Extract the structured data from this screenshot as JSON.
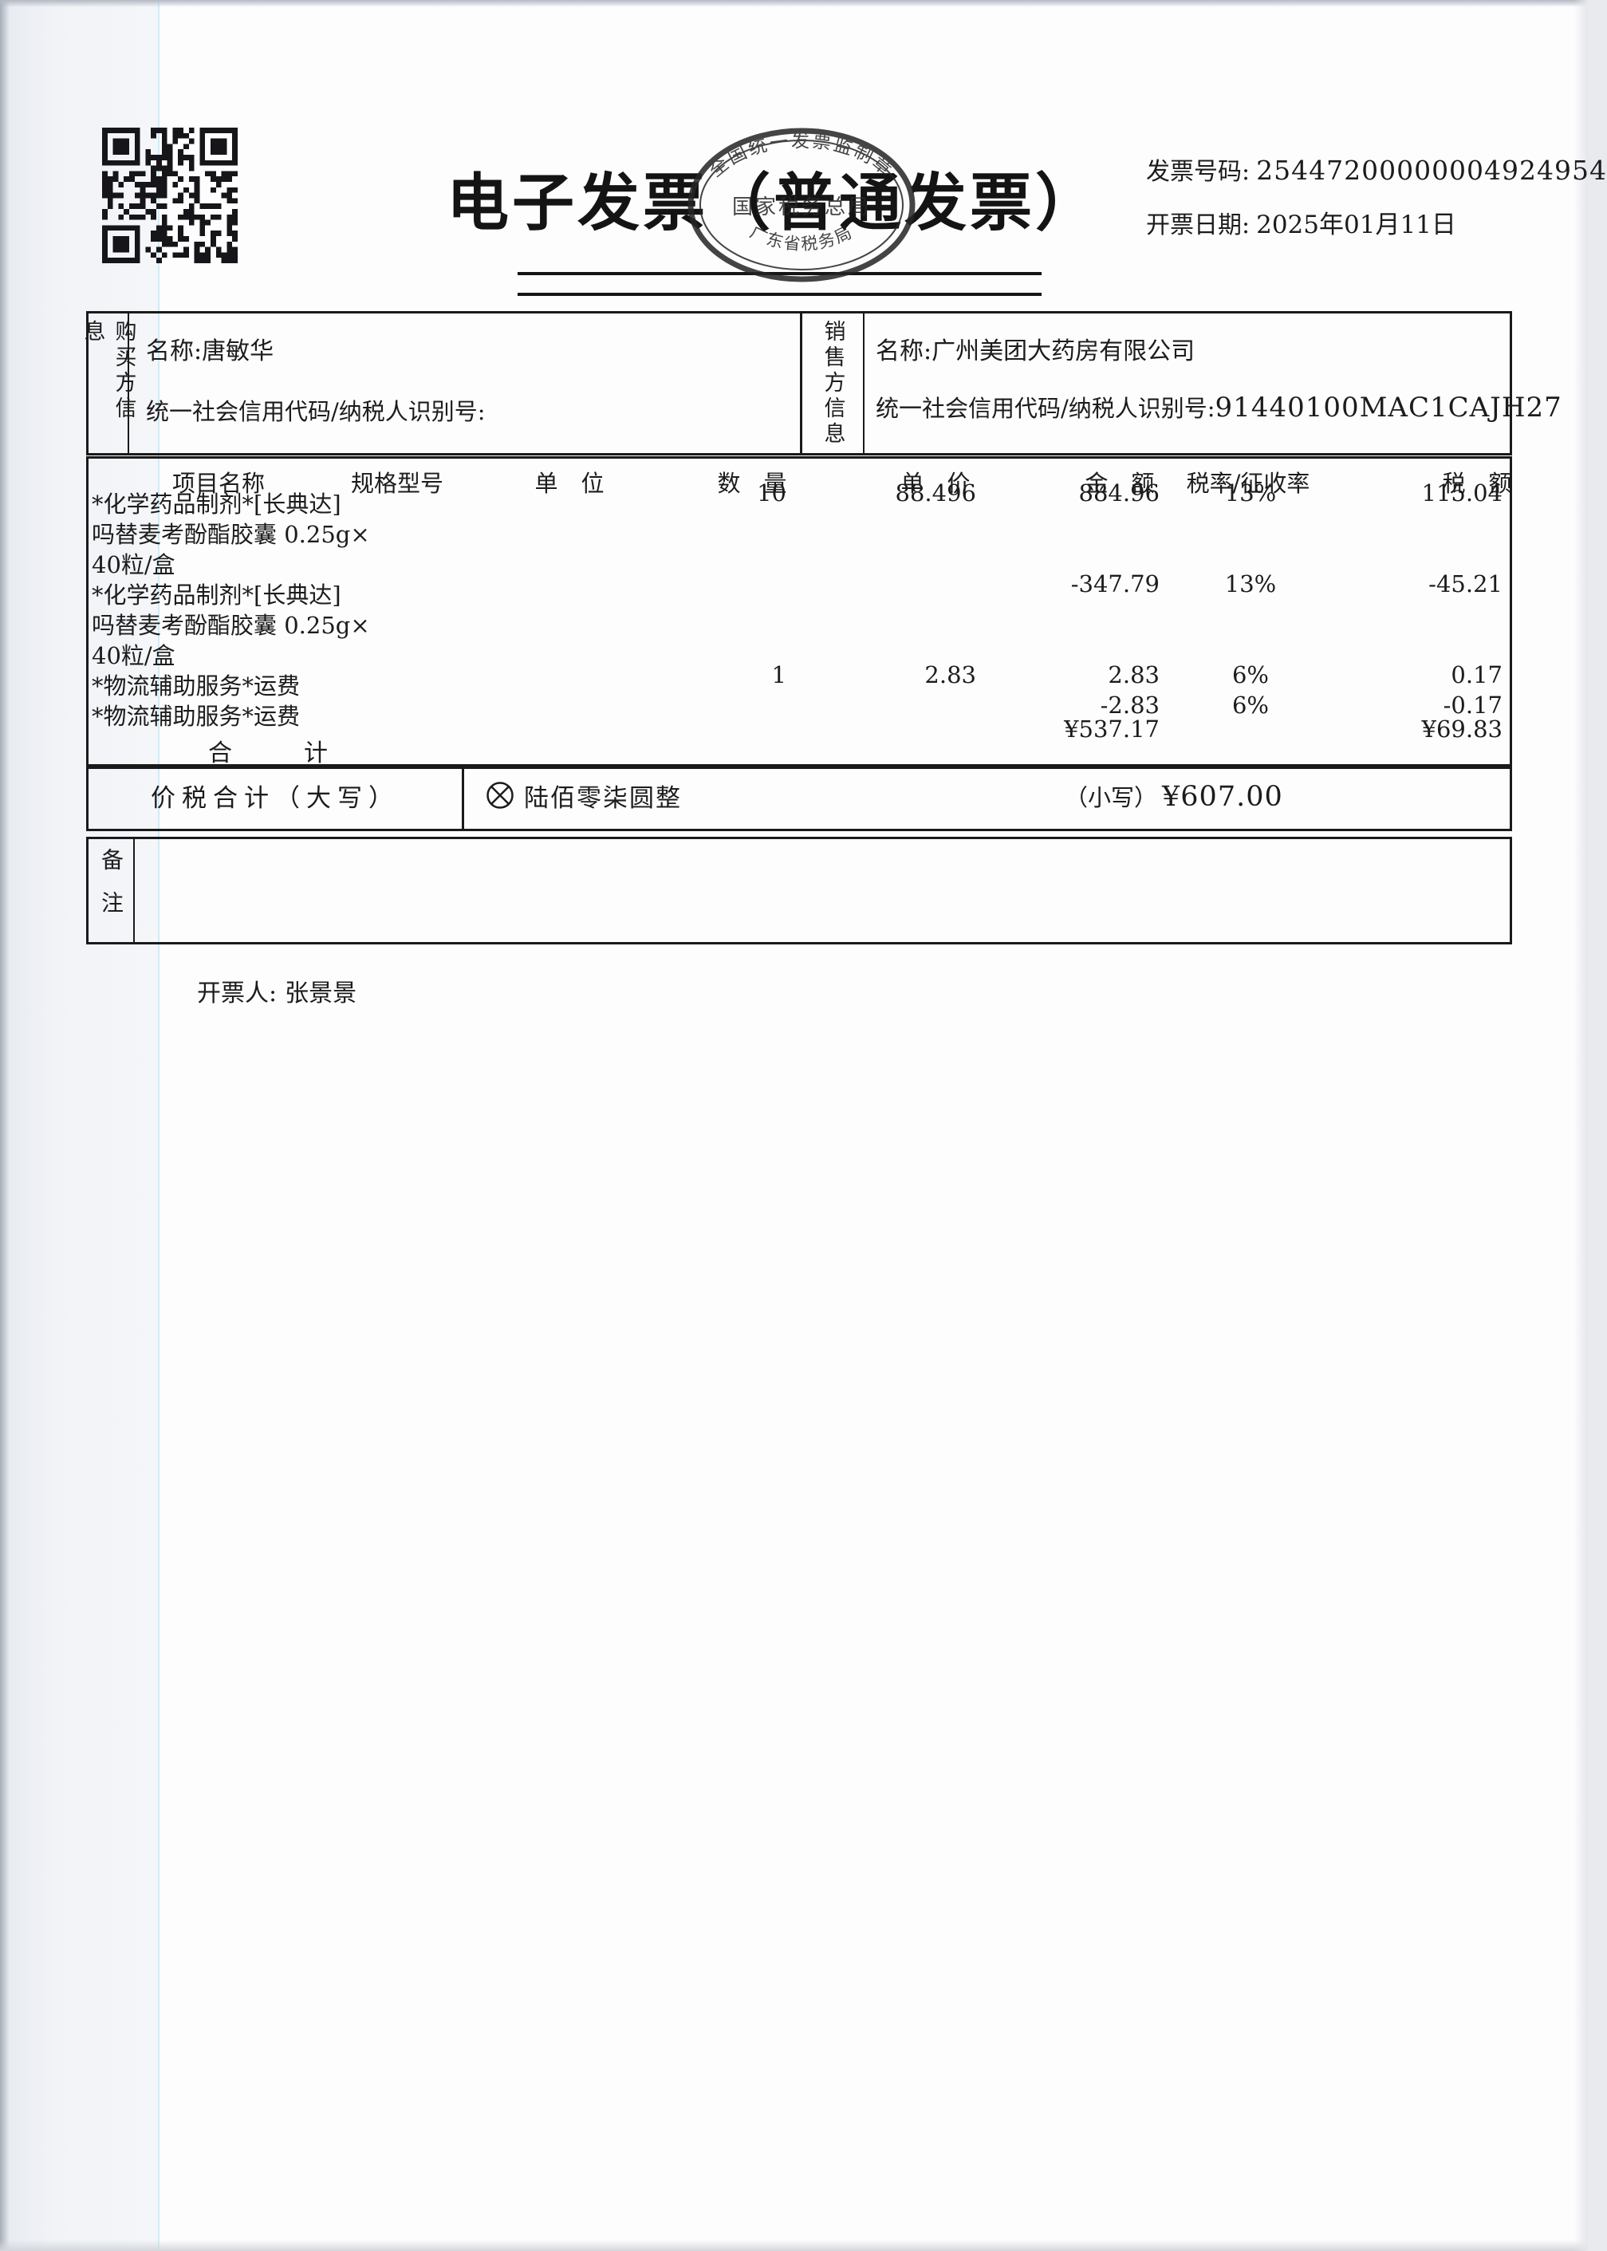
{
  "header": {
    "title": "电子发票（普通发票）",
    "invoice_no_label": "发票号码:",
    "invoice_no": "25447200000004924954",
    "date_label": "开票日期:",
    "date": "2025年01月11日"
  },
  "stamp": {
    "arc_top": "全国统一发票监制章",
    "line_middle": "国家税务总局",
    "arc_bottom": "广东省税务局"
  },
  "buyer": {
    "panel_label": "购买方信息",
    "name_label": "名称:",
    "name": "唐敏华",
    "tax_id_label": "统一社会信用代码/纳税人识别号:",
    "tax_id": ""
  },
  "seller": {
    "panel_label": "销售方信息",
    "name_label": "名称:",
    "name": "广州美团大药房有限公司",
    "tax_id_label": "统一社会信用代码/纳税人识别号:",
    "tax_id": "91440100MAC1CAJH27"
  },
  "table": {
    "headers": [
      "项目名称",
      "规格型号",
      "单　位",
      "数　量",
      "单　价",
      "金　额",
      "税率/征收率",
      "税　额"
    ],
    "lines": [
      {
        "name": "*化学药品制剂*[长典达]",
        "qty": "10",
        "unit_price": "88.496",
        "amount": "884.96",
        "tax_rate": "13%",
        "tax": "115.04"
      },
      {
        "name": "吗替麦考酚酯胶囊 0.25g×",
        "qty": "",
        "unit_price": "",
        "amount": "",
        "tax_rate": "",
        "tax": ""
      },
      {
        "name": "40粒/盒",
        "qty": "",
        "unit_price": "",
        "amount": "",
        "tax_rate": "",
        "tax": ""
      },
      {
        "name": "*化学药品制剂*[长典达]",
        "qty": "",
        "unit_price": "",
        "amount": "-347.79",
        "tax_rate": "13%",
        "tax": "-45.21"
      },
      {
        "name": "吗替麦考酚酯胶囊 0.25g×",
        "qty": "",
        "unit_price": "",
        "amount": "",
        "tax_rate": "",
        "tax": ""
      },
      {
        "name": "40粒/盒",
        "qty": "",
        "unit_price": "",
        "amount": "",
        "tax_rate": "",
        "tax": ""
      },
      {
        "name": "*物流辅助服务*运费",
        "qty": "1",
        "unit_price": "2.83",
        "amount": "2.83",
        "tax_rate": "6%",
        "tax": "0.17"
      },
      {
        "name": "*物流辅助服务*运费",
        "qty": "",
        "unit_price": "",
        "amount": "-2.83",
        "tax_rate": "6%",
        "tax": "-0.17"
      }
    ],
    "total_label": "合　　　计",
    "total_amount": "¥537.17",
    "total_tax": "¥69.83"
  },
  "summary": {
    "label": "价税合计（大写）",
    "amount_in_words": "陆佰零柒圆整",
    "figures_label": "（小写）",
    "amount_in_figures": "¥607.00"
  },
  "remarks": {
    "label": "备注",
    "content": ""
  },
  "footer": {
    "issuer_label": "开票人:",
    "issuer": "张景景"
  }
}
